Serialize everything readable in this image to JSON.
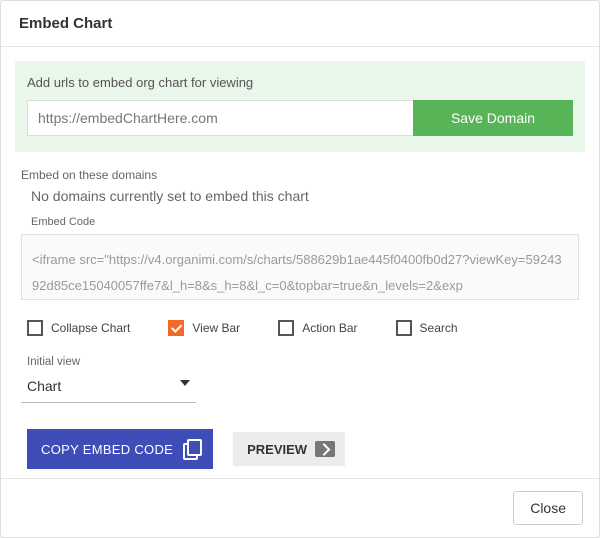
{
  "modal": {
    "title": "Embed Chart",
    "close_label": "Close"
  },
  "add_url": {
    "label": "Add urls to embed org chart for viewing",
    "input_value": "https://embedChartHere.com",
    "save_label": "Save Domain",
    "panel_bg": "#e9f6ea",
    "save_bg": "#57b557"
  },
  "domains": {
    "label": "Embed on these domains",
    "empty_text": "No domains currently set to embed this chart"
  },
  "embed_code": {
    "label": "Embed Code",
    "value": "<iframe src=\"https://v4.organimi.com/s/charts/588629b1ae445f0400fb0d27?viewKey=5924392d85ce15040057ffe7&l_h=8&s_h=8&l_c=0&topbar=true&n_levels=2&exp"
  },
  "options": {
    "collapse_chart": {
      "label": "Collapse Chart",
      "checked": false
    },
    "view_bar": {
      "label": "View Bar",
      "checked": true
    },
    "action_bar": {
      "label": "Action Bar",
      "checked": false
    },
    "search": {
      "label": "Search",
      "checked": false
    },
    "checked_color": "#f26a2a"
  },
  "initial_view": {
    "label": "Initial view",
    "value": "Chart"
  },
  "actions": {
    "copy_label": "COPY EMBED CODE",
    "preview_label": "PREVIEW",
    "copy_bg": "#3f4db8"
  }
}
